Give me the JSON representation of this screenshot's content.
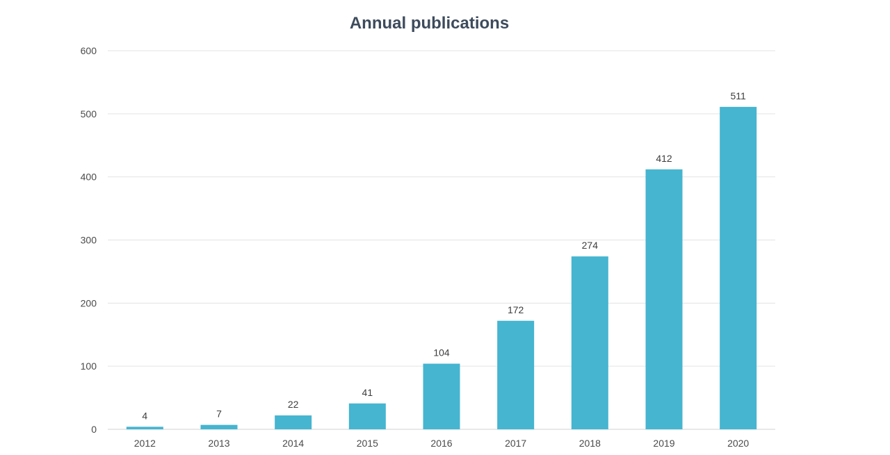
{
  "chart_data": {
    "type": "bar",
    "title": "Annual publications",
    "xlabel": "",
    "ylabel": "",
    "categories": [
      "2012",
      "2013",
      "2014",
      "2015",
      "2016",
      "2017",
      "2018",
      "2019",
      "2020"
    ],
    "values": [
      4,
      7,
      22,
      41,
      104,
      172,
      274,
      412,
      511
    ],
    "ylim": [
      0,
      600
    ],
    "yticks": [
      0,
      100,
      200,
      300,
      400,
      500,
      600
    ],
    "grid": "horizontal",
    "bar_color": "#45b5d0",
    "gridline_color": "#e3e3e3",
    "data_labels": true
  }
}
